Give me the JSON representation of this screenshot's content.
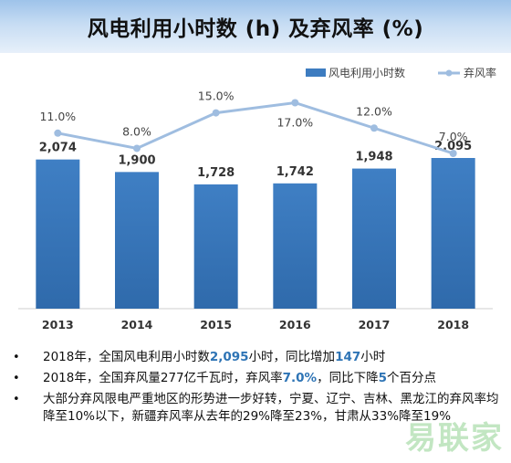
{
  "title": "风电利用小时数 (h) 及弃风率 (%)",
  "legend": {
    "bar_label": "风电利用小时数",
    "line_label": "弃风率"
  },
  "chart_data": {
    "type": "bar",
    "categories": [
      "2013",
      "2014",
      "2015",
      "2016",
      "2017",
      "2018"
    ],
    "series": [
      {
        "name": "风电利用小时数",
        "type": "bar",
        "values": [
          2074,
          1900,
          1728,
          1742,
          1948,
          2095
        ],
        "labels": [
          "2,074",
          "1,900",
          "1,728",
          "1,742",
          "1,948",
          "2,095"
        ],
        "color": "#3d7cc0"
      },
      {
        "name": "弃风率",
        "type": "line",
        "values": [
          11.0,
          8.0,
          15.0,
          17.0,
          12.0,
          7.0
        ],
        "labels": [
          "11.0%",
          "8.0%",
          "15.0%",
          "17.0%",
          "12.0%",
          "7.0%"
        ],
        "color": "#9fbde0"
      }
    ],
    "legend_position": "top-right",
    "grid": false
  },
  "bullets": [
    [
      "2018年，全国风电利用小时数",
      {
        "hl": "2,095"
      },
      "小时，同比增加",
      {
        "hl": "147"
      },
      "小时"
    ],
    [
      "2018年，全国弃风量277亿千瓦时，弃风率",
      {
        "hl": "7.0%"
      },
      "，同比下降",
      {
        "hl": "5"
      },
      "个百分点"
    ],
    [
      "大部分弃风限电严重地区的形势进一步好转，宁夏、辽宁、吉林、黑龙江的弃风率均降至10%以下，新疆弃风率从去年的29%降至23%，甘肃从33%降至19%"
    ]
  ],
  "watermark": "易联家",
  "colors": {
    "bar": "#3d7cc0",
    "line": "#9fbde0",
    "highlight": "#2e74b5",
    "title_bg": "#b6d2ef"
  }
}
